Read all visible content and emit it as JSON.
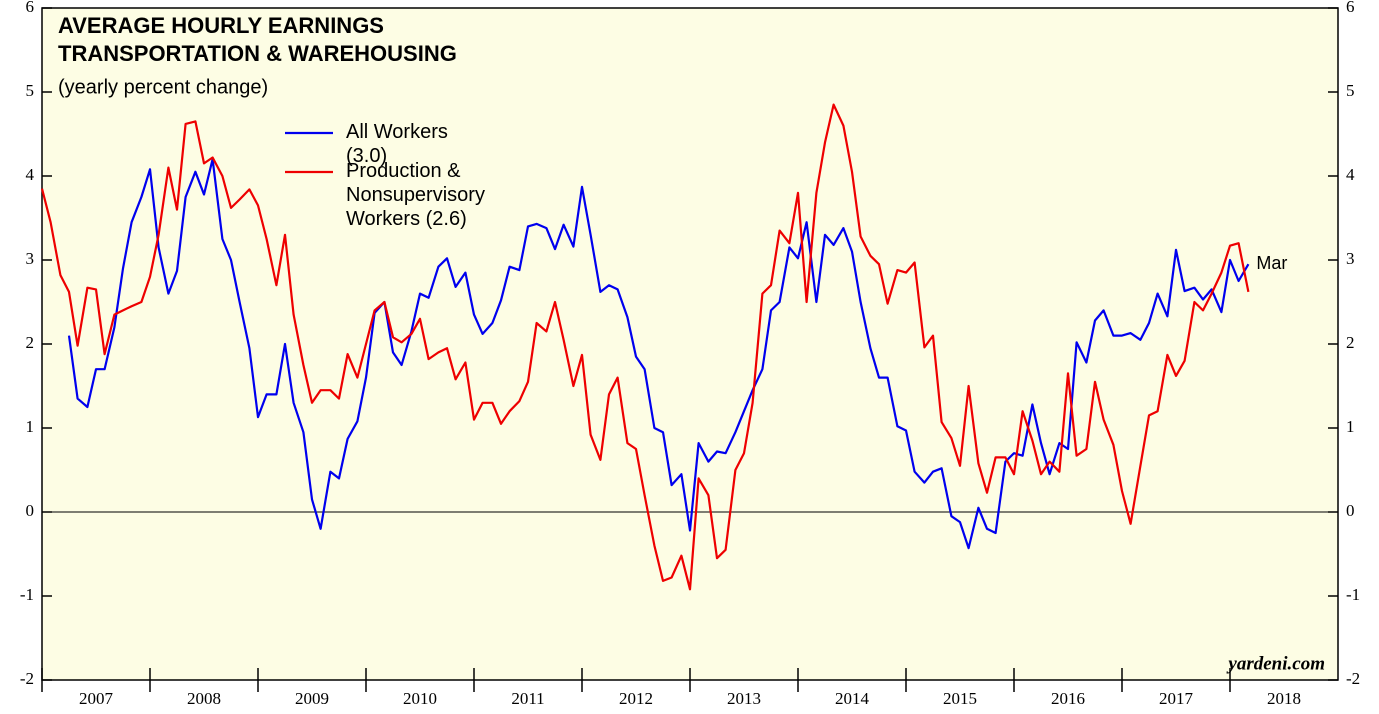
{
  "chart_data": {
    "type": "line",
    "title": "AVERAGE HOURLY EARNINGS",
    "subtitle": "TRANSPORTATION & WAREHOUSING",
    "note": "(yearly percent change)",
    "source": "yardeni.com",
    "annotations": [
      {
        "text": "Mar",
        "color": "#0000ee"
      }
    ],
    "x": [
      2007,
      2007.08,
      2007.17,
      2007.25,
      2007.33,
      2007.42,
      2007.5,
      2007.58,
      2007.67,
      2007.75,
      2007.83,
      2007.92,
      2008,
      2008.08,
      2008.17,
      2008.25,
      2008.33,
      2008.42,
      2008.5,
      2008.58,
      2008.67,
      2008.75,
      2008.83,
      2008.92,
      2009,
      2009.08,
      2009.17,
      2009.25,
      2009.33,
      2009.42,
      2009.5,
      2009.58,
      2009.67,
      2009.75,
      2009.83,
      2009.92,
      2010,
      2010.08,
      2010.17,
      2010.25,
      2010.33,
      2010.42,
      2010.5,
      2010.58,
      2010.67,
      2010.75,
      2010.83,
      2010.92,
      2011,
      2011.08,
      2011.17,
      2011.25,
      2011.33,
      2011.42,
      2011.5,
      2011.58,
      2011.67,
      2011.75,
      2011.83,
      2011.92,
      2012,
      2012.08,
      2012.17,
      2012.25,
      2012.33,
      2012.42,
      2012.5,
      2012.58,
      2012.67,
      2012.75,
      2012.83,
      2012.92,
      2013,
      2013.08,
      2013.17,
      2013.25,
      2013.33,
      2013.42,
      2013.5,
      2013.58,
      2013.67,
      2013.75,
      2013.83,
      2013.92,
      2014,
      2014.08,
      2014.17,
      2014.25,
      2014.33,
      2014.42,
      2014.5,
      2014.58,
      2014.67,
      2014.75,
      2014.83,
      2014.92,
      2015,
      2015.08,
      2015.17,
      2015.25,
      2015.33,
      2015.42,
      2015.5,
      2015.58,
      2015.67,
      2015.75,
      2015.83,
      2015.92,
      2016,
      2016.08,
      2016.17,
      2016.25,
      2016.33,
      2016.42,
      2016.5,
      2016.58,
      2016.67,
      2016.75,
      2016.83,
      2016.92,
      2017,
      2017.08,
      2017.17,
      2017.25,
      2017.33,
      2017.42,
      2017.5,
      2017.58,
      2017.67,
      2017.75,
      2017.83,
      2017.92,
      2018,
      2018.08,
      2018.17
    ],
    "series": [
      {
        "name": "All Workers (3.0)",
        "color": "#0000ee",
        "values": [
          null,
          null,
          null,
          2.1,
          1.35,
          1.25,
          1.7,
          1.7,
          2.2,
          2.9,
          3.45,
          3.75,
          4.08,
          3.15,
          2.6,
          2.87,
          3.75,
          4.05,
          3.78,
          4.2,
          3.25,
          3.0,
          2.5,
          1.95,
          1.13,
          1.4,
          1.4,
          2.0,
          1.3,
          0.95,
          0.15,
          -0.2,
          0.48,
          0.4,
          0.87,
          1.08,
          1.6,
          2.37,
          2.5,
          1.9,
          1.75,
          2.15,
          2.6,
          2.55,
          2.92,
          3.02,
          2.68,
          2.85,
          2.35,
          2.12,
          2.25,
          2.52,
          2.92,
          2.88,
          3.4,
          3.43,
          3.38,
          3.13,
          3.42,
          3.16,
          3.87,
          3.3,
          2.62,
          2.7,
          2.65,
          2.32,
          1.85,
          1.7,
          1.0,
          0.95,
          0.32,
          0.45,
          -0.22,
          0.82,
          0.6,
          0.72,
          0.7,
          0.95,
          1.2,
          1.45,
          1.7,
          2.4,
          2.5,
          3.15,
          3.02,
          3.45,
          2.5,
          3.3,
          3.18,
          3.38,
          3.1,
          2.5,
          1.95,
          1.6,
          1.6,
          1.02,
          0.97,
          0.48,
          0.35,
          0.48,
          0.52,
          -0.05,
          -0.12,
          -0.43,
          0.05,
          -0.2,
          -0.25,
          0.6,
          0.7,
          0.67,
          1.28,
          0.82,
          0.45,
          0.82,
          0.75,
          2.02,
          1.78,
          2.28,
          2.4,
          2.1,
          2.1,
          2.13,
          2.05,
          2.25,
          2.6,
          2.33,
          3.12,
          2.63,
          2.67,
          2.53,
          2.65,
          2.38,
          3.0,
          2.75,
          2.95
        ]
      },
      {
        "name": "Production & Nonsupervisory Workers (2.6)",
        "color": "#ee0000",
        "values": [
          3.85,
          3.45,
          2.82,
          2.62,
          1.98,
          2.67,
          2.65,
          1.88,
          2.35,
          2.4,
          2.45,
          2.5,
          2.8,
          3.3,
          4.1,
          3.6,
          4.62,
          4.65,
          4.15,
          4.22,
          4.0,
          3.62,
          3.72,
          3.84,
          3.65,
          3.25,
          2.7,
          3.3,
          2.35,
          1.75,
          1.3,
          1.45,
          1.45,
          1.35,
          1.88,
          1.6,
          2.0,
          2.4,
          2.5,
          2.08,
          2.02,
          2.12,
          2.3,
          1.82,
          1.9,
          1.95,
          1.58,
          1.78,
          1.1,
          1.3,
          1.3,
          1.05,
          1.2,
          1.32,
          1.55,
          2.25,
          2.15,
          2.5,
          2.05,
          1.5,
          1.87,
          0.92,
          0.62,
          1.4,
          1.6,
          0.82,
          0.75,
          0.2,
          -0.4,
          -0.82,
          -0.78,
          -0.52,
          -0.92,
          0.4,
          0.2,
          -0.55,
          -0.45,
          0.5,
          0.7,
          1.3,
          2.6,
          2.7,
          3.35,
          3.2,
          3.8,
          2.5,
          3.8,
          4.4,
          4.85,
          4.6,
          4.05,
          3.28,
          3.05,
          2.95,
          2.48,
          2.88,
          2.85,
          2.97,
          1.96,
          2.1,
          1.07,
          0.88,
          0.55,
          1.5,
          0.58,
          0.23,
          0.65,
          0.65,
          0.45,
          1.2,
          0.85,
          0.45,
          0.6,
          0.48,
          1.65,
          0.67,
          0.75,
          1.55,
          1.1,
          0.8,
          0.25,
          -0.14,
          0.55,
          1.15,
          1.2,
          1.87,
          1.62,
          1.8,
          2.5,
          2.4,
          2.6,
          2.85,
          3.17,
          3.2,
          2.62
        ]
      }
    ],
    "xlim": [
      2007,
      2019
    ],
    "xticks": [
      2007,
      2008,
      2009,
      2010,
      2011,
      2012,
      2013,
      2014,
      2015,
      2016,
      2017,
      2018
    ],
    "ylim": [
      -2,
      6
    ],
    "yticks": [
      -2,
      -1,
      0,
      1,
      2,
      3,
      4,
      5,
      6
    ],
    "y2lim": [
      -2,
      6
    ],
    "y2ticks": [
      -2,
      -1,
      0,
      1,
      2,
      3,
      4,
      5,
      6
    ]
  }
}
